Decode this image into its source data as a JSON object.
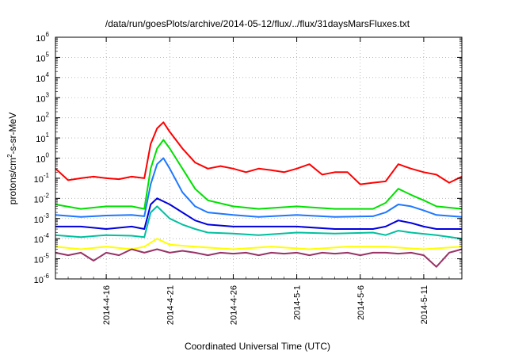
{
  "chart_data": {
    "type": "line",
    "title": "/data/run/goesPlots/archive/2014-05-12/flux/../flux/31daysMarsFluxes.txt",
    "xlabel": "Coordinated Universal Time (UTC)",
    "ylabel": {
      "pre": "protons/cm",
      "sup": "2",
      "post": "-s-sr-MeV"
    },
    "y_scale": "log",
    "ylim_exp": [
      -6,
      6
    ],
    "y_tick_base": "10",
    "y_tick_exponents": [
      "-6",
      "-5",
      "-4",
      "-3",
      "-2",
      "-1",
      "0",
      "1",
      "2",
      "3",
      "4",
      "5",
      "6"
    ],
    "xlim": [
      "2014-04-12",
      "2014-05-14"
    ],
    "x_ticks": [
      "2014-4-16",
      "2014-4-21",
      "2014-4-26",
      "2014-5-1",
      "2014-5-6",
      "2014-5-11"
    ],
    "x_tick_dates": [
      "2014-04-16",
      "2014-04-21",
      "2014-04-26",
      "2014-05-01",
      "2014-05-06",
      "2014-05-11"
    ],
    "grid": true,
    "series": [
      {
        "color": "#ff0000",
        "x": [
          "2014-04-12",
          "2014-04-13",
          "2014-04-14",
          "2014-04-15",
          "2014-04-16",
          "2014-04-17",
          "2014-04-18",
          "2014-04-19",
          "2014-04-19.5",
          "2014-04-20",
          "2014-04-20.5",
          "2014-04-21",
          "2014-04-22",
          "2014-04-23",
          "2014-04-24",
          "2014-04-25",
          "2014-04-26",
          "2014-04-27",
          "2014-04-28",
          "2014-04-29",
          "2014-04-30",
          "2014-05-01",
          "2014-05-02",
          "2014-05-03",
          "2014-05-04",
          "2014-05-05",
          "2014-05-06",
          "2014-05-07",
          "2014-05-08",
          "2014-05-09",
          "2014-05-10",
          "2014-05-11",
          "2014-05-12",
          "2014-05-13",
          "2014-05-14"
        ],
        "y": [
          0.3,
          0.08,
          0.1,
          0.12,
          0.1,
          0.09,
          0.12,
          0.1,
          5,
          30,
          60,
          20,
          3,
          0.6,
          0.3,
          0.4,
          0.3,
          0.2,
          0.3,
          0.25,
          0.2,
          0.3,
          0.5,
          0.15,
          0.2,
          0.2,
          0.05,
          0.06,
          0.07,
          0.5,
          0.3,
          0.2,
          0.15,
          0.06,
          0.12
        ]
      },
      {
        "color": "#00e000",
        "x": [
          "2014-04-12",
          "2014-04-14",
          "2014-04-16",
          "2014-04-18",
          "2014-04-19",
          "2014-04-19.5",
          "2014-04-20",
          "2014-04-20.5",
          "2014-04-21",
          "2014-04-22",
          "2014-04-23",
          "2014-04-24",
          "2014-04-26",
          "2014-04-28",
          "2014-05-01",
          "2014-05-04",
          "2014-05-07",
          "2014-05-08",
          "2014-05-09",
          "2014-05-10",
          "2014-05-11",
          "2014-05-12",
          "2014-05-14"
        ],
        "y": [
          0.005,
          0.003,
          0.004,
          0.004,
          0.003,
          0.3,
          3,
          8,
          3,
          0.3,
          0.03,
          0.008,
          0.004,
          0.003,
          0.004,
          0.003,
          0.003,
          0.006,
          0.03,
          0.015,
          0.008,
          0.004,
          0.003
        ]
      },
      {
        "color": "#1e78ff",
        "x": [
          "2014-04-12",
          "2014-04-14",
          "2014-04-16",
          "2014-04-18",
          "2014-04-19",
          "2014-04-19.5",
          "2014-04-20",
          "2014-04-20.5",
          "2014-04-21",
          "2014-04-22",
          "2014-04-23",
          "2014-04-24",
          "2014-04-26",
          "2014-04-28",
          "2014-05-01",
          "2014-05-04",
          "2014-05-07",
          "2014-05-08",
          "2014-05-09",
          "2014-05-10",
          "2014-05-11",
          "2014-05-12",
          "2014-05-14"
        ],
        "y": [
          0.0015,
          0.0012,
          0.0014,
          0.0015,
          0.0013,
          0.05,
          0.5,
          1.0,
          0.3,
          0.02,
          0.004,
          0.002,
          0.0015,
          0.0012,
          0.0015,
          0.0012,
          0.0013,
          0.002,
          0.005,
          0.004,
          0.0025,
          0.0015,
          0.0012
        ]
      },
      {
        "color": "#0000dd",
        "x": [
          "2014-04-12",
          "2014-04-14",
          "2014-04-16",
          "2014-04-18",
          "2014-04-19",
          "2014-04-19.5",
          "2014-04-20",
          "2014-04-21",
          "2014-04-22",
          "2014-04-23",
          "2014-04-24",
          "2014-04-26",
          "2014-04-28",
          "2014-05-01",
          "2014-05-04",
          "2014-05-07",
          "2014-05-08",
          "2014-05-09",
          "2014-05-10",
          "2014-05-11",
          "2014-05-12",
          "2014-05-14"
        ],
        "y": [
          0.0004,
          0.0004,
          0.0003,
          0.0004,
          0.0003,
          0.005,
          0.01,
          0.005,
          0.002,
          0.0008,
          0.0005,
          0.0004,
          0.0004,
          0.0004,
          0.0003,
          0.0003,
          0.0004,
          0.0008,
          0.0006,
          0.0004,
          0.0003,
          0.0003
        ]
      },
      {
        "color": "#00c0a0",
        "x": [
          "2014-04-12",
          "2014-04-14",
          "2014-04-16",
          "2014-04-18",
          "2014-04-19",
          "2014-04-19.5",
          "2014-04-20",
          "2014-04-21",
          "2014-04-22",
          "2014-04-23",
          "2014-04-24",
          "2014-04-26",
          "2014-04-28",
          "2014-05-01",
          "2014-05-04",
          "2014-05-07",
          "2014-05-08",
          "2014-05-09",
          "2014-05-10",
          "2014-05-12",
          "2014-05-14"
        ],
        "y": [
          0.00015,
          0.00012,
          0.00015,
          0.00014,
          0.00012,
          0.002,
          0.004,
          0.001,
          0.0005,
          0.0003,
          0.0002,
          0.00018,
          0.00015,
          0.0002,
          0.00018,
          0.0002,
          0.00015,
          0.00025,
          0.0002,
          0.00015,
          0.0001
        ]
      },
      {
        "color": "#ffff00",
        "x": [
          "2014-04-12",
          "2014-04-14",
          "2014-04-16",
          "2014-04-18",
          "2014-04-19",
          "2014-04-20",
          "2014-04-21",
          "2014-04-23",
          "2014-04-26",
          "2014-04-29",
          "2014-05-02",
          "2014-05-05",
          "2014-05-08",
          "2014-05-11",
          "2014-05-14"
        ],
        "y": [
          4e-05,
          3e-05,
          4e-05,
          3e-05,
          4e-05,
          0.0001,
          5e-05,
          4e-05,
          3e-05,
          4e-05,
          3e-05,
          4e-05,
          4e-05,
          3e-05,
          4e-05
        ]
      },
      {
        "color": "#993366",
        "x": [
          "2014-04-12",
          "2014-04-13",
          "2014-04-14",
          "2014-04-15",
          "2014-04-16",
          "2014-04-17",
          "2014-04-18",
          "2014-04-19",
          "2014-04-20",
          "2014-04-21",
          "2014-04-22",
          "2014-04-23",
          "2014-04-24",
          "2014-04-25",
          "2014-04-26",
          "2014-04-27",
          "2014-04-28",
          "2014-04-29",
          "2014-04-30",
          "2014-05-01",
          "2014-05-02",
          "2014-05-03",
          "2014-05-04",
          "2014-05-05",
          "2014-05-06",
          "2014-05-07",
          "2014-05-08",
          "2014-05-09",
          "2014-05-10",
          "2014-05-11",
          "2014-05-12",
          "2014-05-13",
          "2014-05-14"
        ],
        "y": [
          2e-05,
          1.5e-05,
          2e-05,
          8e-06,
          2e-05,
          1.5e-05,
          3e-05,
          2e-05,
          3e-05,
          2e-05,
          2.5e-05,
          2e-05,
          1.5e-05,
          2e-05,
          1.8e-05,
          2e-05,
          1.5e-05,
          2e-05,
          1.8e-05,
          2e-05,
          1.5e-05,
          2e-05,
          1.8e-05,
          2e-05,
          1.5e-05,
          2e-05,
          2e-05,
          1.8e-05,
          2e-05,
          1.5e-05,
          4e-06,
          2e-05,
          3e-05
        ]
      }
    ]
  }
}
